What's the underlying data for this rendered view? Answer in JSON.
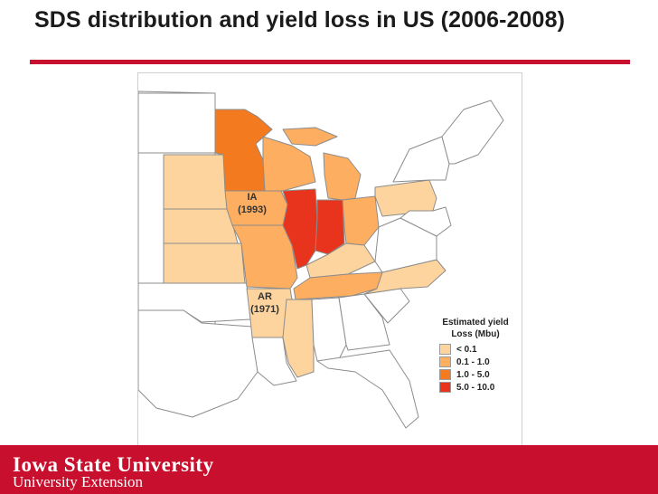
{
  "slide": {
    "title": "SDS distribution and yield loss in US (2006-2008)"
  },
  "map": {
    "annotations": [
      {
        "state": "IA",
        "year": "(1993)"
      },
      {
        "state": "AR",
        "year": "(1971)"
      }
    ],
    "legend": {
      "title_line1": "Estimated yield",
      "title_line2": "Loss (Mbu)",
      "entries": [
        {
          "label": "< 0.1",
          "color": "#fdd49e"
        },
        {
          "label": "0.1 - 1.0",
          "color": "#fdae61"
        },
        {
          "label": "1.0 - 5.0",
          "color": "#f47a20"
        },
        {
          "label": "5.0 - 10.0",
          "color": "#e8341c"
        }
      ]
    },
    "colors": {
      "none": "#ffffff",
      "outline": "#8c8c8c",
      "water": "#ffffff"
    }
  },
  "footer": {
    "university": "Iowa State University",
    "unit": "University Extension",
    "background": "#c8102e"
  }
}
